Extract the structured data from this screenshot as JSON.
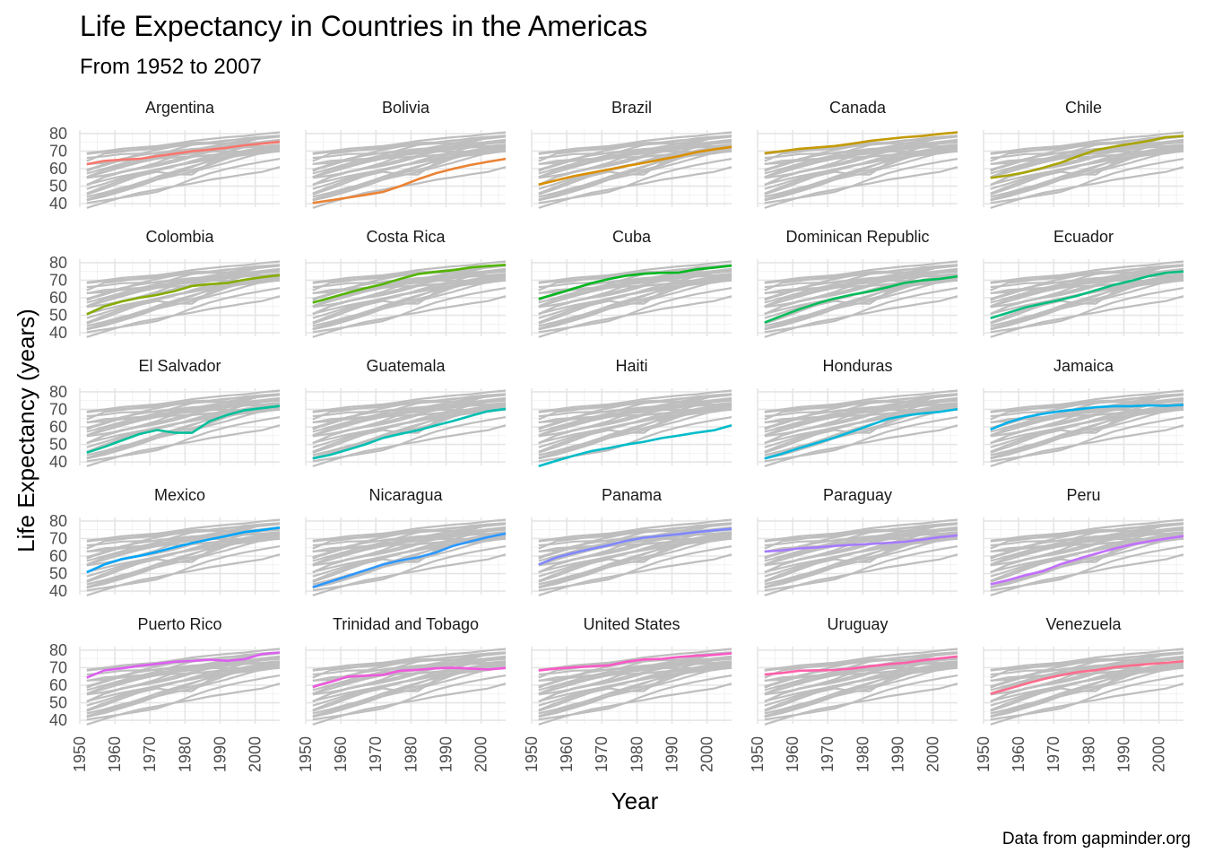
{
  "chart_data": {
    "type": "line",
    "title": "Life Expectancy in Countries in the Americas",
    "subtitle": "From 1952 to 2007",
    "xlabel": "Year",
    "ylabel": "Life Expectancy (years)",
    "caption": "Data from gapminder.org",
    "x": [
      1952,
      1957,
      1962,
      1967,
      1972,
      1977,
      1982,
      1987,
      1992,
      1997,
      2002,
      2007
    ],
    "xlim": [
      1950,
      2007
    ],
    "ylim": [
      38,
      82
    ],
    "x_ticks": [
      "1950",
      "1960",
      "1970",
      "1980",
      "1990",
      "2000"
    ],
    "y_ticks": [
      "40",
      "50",
      "60",
      "70",
      "80"
    ],
    "layout": "facet grid 5 x 5, each facet highlights one country over all others in grey",
    "grid": true,
    "legend": "none",
    "background_color": "#bebebe",
    "series": [
      {
        "name": "Argentina",
        "color": "#F8766D",
        "values": [
          62.5,
          64.4,
          65.1,
          65.6,
          67.1,
          68.5,
          69.9,
          70.8,
          71.9,
          73.3,
          74.3,
          75.3
        ]
      },
      {
        "name": "Bolivia",
        "color": "#EB8335",
        "values": [
          40.4,
          41.9,
          43.4,
          45.0,
          46.7,
          50.0,
          53.9,
          57.3,
          59.9,
          62.1,
          63.9,
          65.6
        ]
      },
      {
        "name": "Brazil",
        "color": "#DA8F00",
        "values": [
          50.9,
          53.3,
          55.7,
          57.6,
          59.5,
          61.5,
          63.3,
          65.2,
          67.1,
          69.4,
          71.0,
          72.4
        ]
      },
      {
        "name": "Canada",
        "color": "#C49A00",
        "values": [
          68.8,
          70.0,
          71.3,
          72.1,
          72.9,
          74.2,
          75.8,
          76.9,
          77.9,
          78.6,
          79.8,
          80.7
        ]
      },
      {
        "name": "Chile",
        "color": "#A9A400",
        "values": [
          54.7,
          56.1,
          57.9,
          60.5,
          63.4,
          67.1,
          70.6,
          72.5,
          74.1,
          75.8,
          77.9,
          78.6
        ]
      },
      {
        "name": "Colombia",
        "color": "#86AC00",
        "values": [
          50.6,
          55.1,
          57.9,
          60.0,
          61.6,
          63.8,
          66.7,
          67.8,
          68.4,
          70.3,
          71.7,
          72.9
        ]
      },
      {
        "name": "Costa Rica",
        "color": "#53B400",
        "values": [
          57.2,
          60.0,
          62.8,
          65.4,
          67.8,
          70.8,
          73.5,
          74.8,
          75.7,
          77.3,
          78.1,
          78.8
        ]
      },
      {
        "name": "Cuba",
        "color": "#00B81F",
        "values": [
          59.4,
          62.3,
          65.2,
          68.3,
          70.7,
          72.6,
          73.7,
          74.2,
          74.4,
          76.2,
          77.2,
          78.3
        ]
      },
      {
        "name": "Dominican Republic",
        "color": "#00BC59",
        "values": [
          45.9,
          49.8,
          53.5,
          56.8,
          59.6,
          61.8,
          63.7,
          66.0,
          68.5,
          69.9,
          70.8,
          72.2
        ]
      },
      {
        "name": "Ecuador",
        "color": "#00BE7D",
        "values": [
          48.4,
          51.4,
          54.6,
          56.7,
          58.8,
          61.3,
          64.3,
          67.2,
          69.6,
          72.3,
          74.2,
          75.0
        ]
      },
      {
        "name": "El Salvador",
        "color": "#00C09A",
        "values": [
          45.3,
          48.6,
          52.3,
          55.9,
          58.2,
          56.7,
          56.6,
          63.2,
          66.8,
          69.5,
          70.7,
          71.9
        ]
      },
      {
        "name": "Guatemala",
        "color": "#00C0B3",
        "values": [
          42.0,
          44.1,
          47.0,
          50.0,
          53.7,
          56.0,
          58.1,
          60.8,
          63.4,
          66.3,
          68.98,
          70.3
        ]
      },
      {
        "name": "Haiti",
        "color": "#00BDC9",
        "values": [
          37.6,
          40.7,
          43.6,
          46.2,
          48.0,
          49.9,
          51.5,
          53.6,
          55.1,
          56.7,
          58.1,
          60.9
        ]
      },
      {
        "name": "Honduras",
        "color": "#00B8DC",
        "values": [
          41.9,
          44.7,
          48.0,
          50.9,
          53.9,
          57.4,
          60.9,
          64.5,
          66.4,
          67.7,
          68.6,
          70.2
        ]
      },
      {
        "name": "Jamaica",
        "color": "#00B0EC",
        "values": [
          58.5,
          62.6,
          65.6,
          67.5,
          69.0,
          70.1,
          71.2,
          71.8,
          71.8,
          72.3,
          72.0,
          72.6
        ]
      },
      {
        "name": "Mexico",
        "color": "#00A5FA",
        "values": [
          50.8,
          55.2,
          58.3,
          60.1,
          62.4,
          65.0,
          67.4,
          69.5,
          71.5,
          73.7,
          74.9,
          76.2
        ]
      },
      {
        "name": "Nicaragua",
        "color": "#2C98FF",
        "values": [
          42.3,
          45.4,
          48.6,
          51.9,
          55.2,
          57.5,
          59.3,
          62.0,
          65.8,
          68.4,
          70.8,
          72.9
        ]
      },
      {
        "name": "Panama",
        "color": "#7F87FF",
        "values": [
          55.2,
          59.2,
          61.8,
          64.1,
          66.2,
          68.7,
          70.5,
          71.5,
          72.5,
          73.7,
          74.7,
          75.5
        ]
      },
      {
        "name": "Paraguay",
        "color": "#A67AFF",
        "values": [
          62.6,
          63.2,
          64.4,
          64.95,
          65.8,
          66.4,
          66.9,
          67.4,
          68.2,
          69.4,
          70.8,
          71.8
        ]
      },
      {
        "name": "Peru",
        "color": "#C36FFF",
        "values": [
          43.9,
          46.3,
          49.1,
          51.4,
          55.4,
          58.4,
          61.4,
          64.1,
          66.5,
          68.4,
          69.9,
          71.4
        ]
      },
      {
        "name": "Puerto Rico",
        "color": "#DC5FF0",
        "values": [
          64.3,
          68.5,
          69.6,
          71.1,
          72.2,
          73.4,
          73.8,
          74.6,
          73.9,
          74.9,
          77.8,
          78.7
        ]
      },
      {
        "name": "Trinidad and Tobago",
        "color": "#EF58DD",
        "values": [
          59.1,
          61.8,
          64.9,
          65.4,
          65.9,
          68.3,
          68.8,
          69.6,
          69.9,
          69.5,
          68.98,
          69.8
        ]
      },
      {
        "name": "United States",
        "color": "#FA58C6",
        "values": [
          68.4,
          69.5,
          70.2,
          70.8,
          71.3,
          73.4,
          74.7,
          75.0,
          76.1,
          76.8,
          77.3,
          78.2
        ]
      },
      {
        "name": "Uruguay",
        "color": "#FF5FAA",
        "values": [
          66.1,
          67.0,
          68.3,
          68.5,
          68.7,
          69.5,
          70.8,
          71.9,
          72.8,
          74.2,
          75.3,
          76.4
        ]
      },
      {
        "name": "Venezuela",
        "color": "#FF6C8C",
        "values": [
          55.1,
          57.9,
          60.8,
          63.5,
          65.7,
          67.5,
          68.6,
          70.2,
          71.2,
          72.1,
          72.8,
          73.7
        ]
      }
    ]
  }
}
